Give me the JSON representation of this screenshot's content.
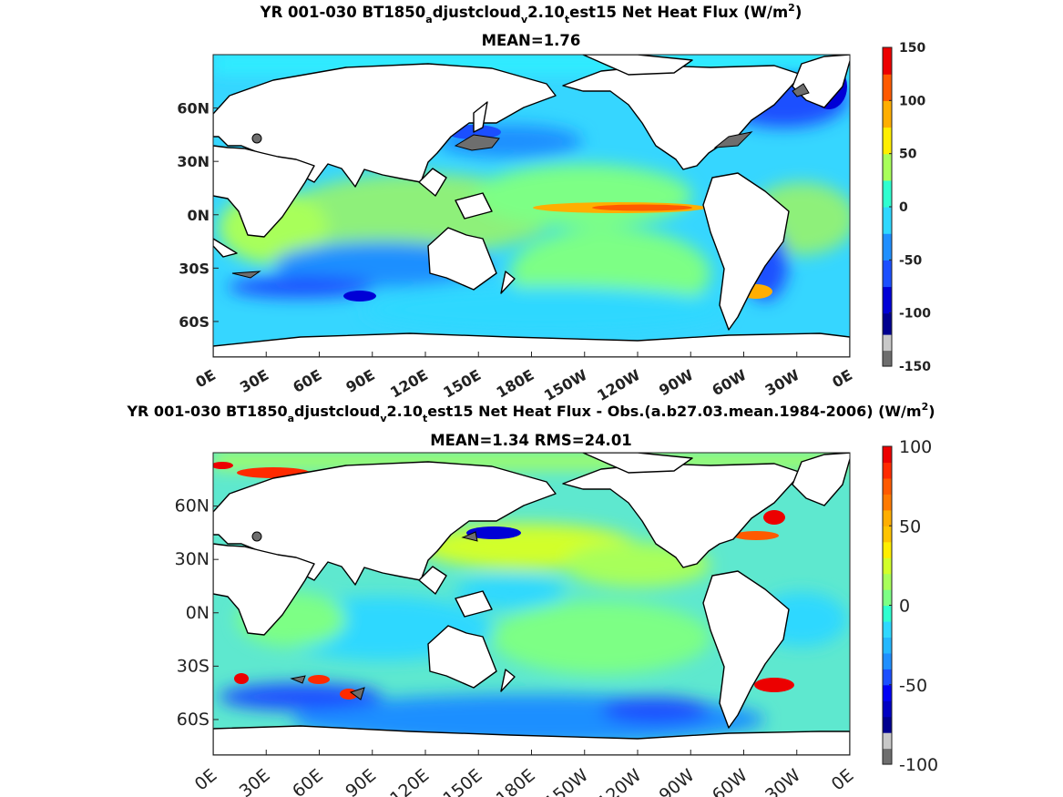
{
  "chart_data": [
    {
      "type": "heatmap",
      "title": "YR 001-030 BT1850_adjustcloud_v2.10_test15  Net Heat Flux (W/m²)",
      "title_parts": {
        "p1": "YR 001-030 BT1850",
        "s1": "a",
        "p2": "djustcloud",
        "s2": "v",
        "p3": "2.10",
        "s3": "t",
        "p4": "est15  Net Heat Flux (W/m",
        "sup": "2",
        "p5": ")"
      },
      "subtitle": "MEAN=1.76",
      "xlim": [
        0,
        360
      ],
      "ylim": [
        -80,
        90
      ],
      "xticks": [
        "0E",
        "30E",
        "60E",
        "90E",
        "120E",
        "150E",
        "180E",
        "150W",
        "120W",
        "90W",
        "60W",
        "30W",
        "0E"
      ],
      "yticks": [
        "60N",
        "30N",
        "0N",
        "30S",
        "60S"
      ],
      "colorbar": {
        "range": [
          -150,
          150
        ],
        "ticks": [
          "150",
          "100",
          "50",
          "0",
          "-50",
          "-100",
          "-150"
        ],
        "levels": [
          -150,
          -135,
          -120,
          -100,
          -75,
          -50,
          -25,
          0,
          25,
          50,
          75,
          100,
          125,
          150
        ],
        "colors": [
          "#6e6e6e",
          "#c8c8c8",
          "#00008f",
          "#0000d6",
          "#1b4fff",
          "#1f8fff",
          "#2fd8ff",
          "#2fffd0",
          "#a8ff5a",
          "#ffee00",
          "#ffae00",
          "#ff5a00",
          "#ec0000"
        ]
      }
    },
    {
      "type": "heatmap",
      "title": "YR 001-030 BT1850_adjustcloud_v2.10_test15  Net Heat Flux - Obs.(a.b27.03.mean.1984-2006) (W/m²)",
      "title_parts": {
        "p1": "YR 001-030 BT1850",
        "s1": "a",
        "p2": "djustcloud",
        "s2": "v",
        "p3": "2.10",
        "s3": "t",
        "p4": "est15  Net Heat Flux - Obs.(a.b27.03.mean.1984-2006) (W/m",
        "sup": "2",
        "p5": ")"
      },
      "subtitle": "MEAN=1.34 RMS=24.01",
      "xlim": [
        0,
        360
      ],
      "ylim": [
        -80,
        90
      ],
      "xticks": [
        "0E",
        "30E",
        "60E",
        "90E",
        "120E",
        "150E",
        "180E",
        "150W",
        "120W",
        "90W",
        "60W",
        "30W",
        "0E"
      ],
      "yticks": [
        "60N",
        "30N",
        "0N",
        "30S",
        "60S"
      ],
      "colorbar": {
        "range": [
          -100,
          100
        ],
        "ticks": [
          "100",
          "50",
          "0",
          "-50",
          "-100"
        ],
        "levels": [
          -100,
          -90,
          -80,
          -70,
          -60,
          -50,
          -40,
          -30,
          -20,
          -10,
          0,
          10,
          20,
          30,
          40,
          50,
          60,
          70,
          80,
          90,
          100
        ],
        "colors": [
          "#6e6e6e",
          "#c8c8c8",
          "#00008f",
          "#0000c2",
          "#0000f5",
          "#1b4fff",
          "#1f8fff",
          "#24b8ff",
          "#2fd8ff",
          "#2fffd0",
          "#7dff85",
          "#a8ff5a",
          "#d2ff2a",
          "#ffee00",
          "#ffc400",
          "#ffae00",
          "#ff7a00",
          "#ff5a00",
          "#ff2a00",
          "#ec0000"
        ]
      }
    }
  ]
}
